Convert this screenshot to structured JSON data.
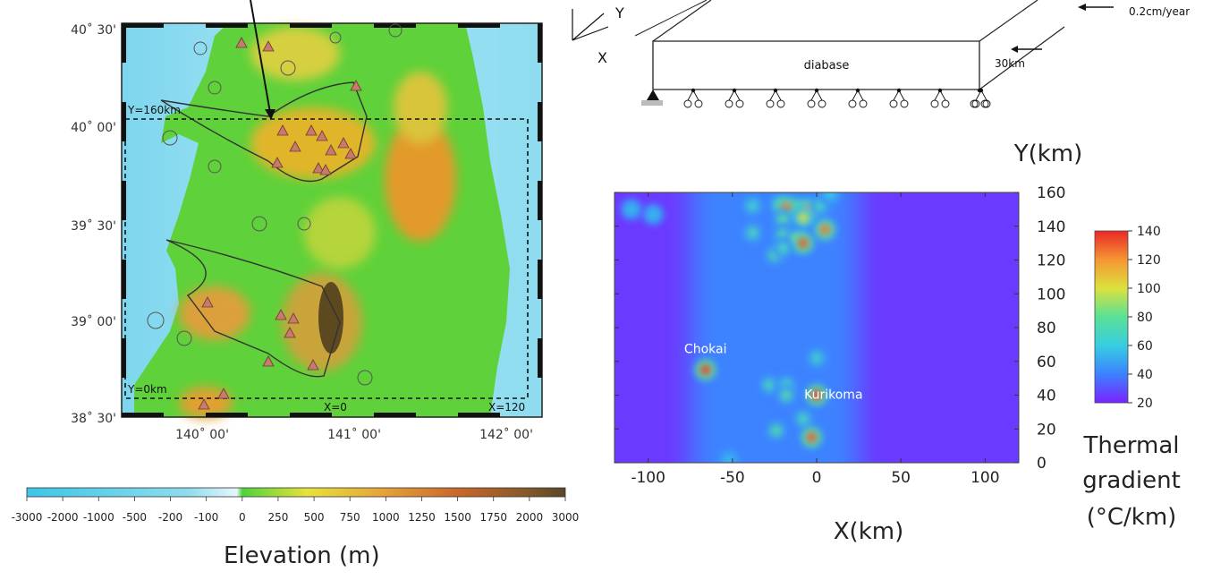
{
  "map": {
    "lat_labels": [
      "40˚ 30'",
      "40˚ 00'",
      "39˚ 30'",
      "39˚ 00'",
      "38˚ 30'"
    ],
    "lon_labels": [
      "140˚ 00'",
      "141˚ 00'",
      "142˚ 00'"
    ],
    "box_labels": {
      "ytop": "Y=160km",
      "ybottom": "Y=0km",
      "xleft": "X=0",
      "xright": "X=120"
    }
  },
  "elevation_scale": {
    "ticks": [
      "-3000",
      "-2000",
      "-1000",
      "-500",
      "-200",
      "-100",
      "0",
      "250",
      "500",
      "750",
      "1000",
      "1250",
      "1500",
      "1750",
      "2000",
      "3000"
    ],
    "title": "Elevation (m)"
  },
  "model": {
    "axis_y": "Y",
    "axis_x": "X",
    "velocity_label": "0.2cm/year",
    "material_label": "diabase",
    "thickness_label": "30km"
  },
  "chart_data": {
    "type": "heatmap",
    "title": "",
    "xlabel": "X(km)",
    "ylabel": "Y(km)",
    "xlim": [
      -120,
      120
    ],
    "ylim": [
      0,
      160
    ],
    "xticks": [
      -100,
      -50,
      0,
      50,
      100
    ],
    "yticks": [
      0,
      20,
      40,
      60,
      80,
      100,
      120,
      140,
      160
    ],
    "background_value": 25,
    "band": {
      "x_range": [
        -75,
        25
      ],
      "value": 40
    },
    "hotspots": [
      {
        "x": -110,
        "y": 150,
        "v": 55
      },
      {
        "x": -97,
        "y": 147,
        "v": 55
      },
      {
        "x": -38,
        "y": 152,
        "v": 65
      },
      {
        "x": -22,
        "y": 153,
        "v": 75
      },
      {
        "x": -12,
        "y": 152,
        "v": 75
      },
      {
        "x": -5,
        "y": 150,
        "v": 115
      },
      {
        "x": -18,
        "y": 151,
        "v": 125
      },
      {
        "x": 2,
        "y": 152,
        "v": 70
      },
      {
        "x": -20,
        "y": 144,
        "v": 80
      },
      {
        "x": -8,
        "y": 145,
        "v": 100
      },
      {
        "x": -38,
        "y": 136,
        "v": 70
      },
      {
        "x": -20,
        "y": 135,
        "v": 75
      },
      {
        "x": -12,
        "y": 132,
        "v": 90
      },
      {
        "x": 5,
        "y": 138,
        "v": 125
      },
      {
        "x": -8,
        "y": 130,
        "v": 130
      },
      {
        "x": -25,
        "y": 123,
        "v": 75
      },
      {
        "x": -20,
        "y": 127,
        "v": 70
      },
      {
        "x": 8,
        "y": 159,
        "v": 60
      },
      {
        "x": -66,
        "y": 55,
        "v": 135
      },
      {
        "x": -28,
        "y": 46,
        "v": 70
      },
      {
        "x": -18,
        "y": 46,
        "v": 70
      },
      {
        "x": -18,
        "y": 40,
        "v": 75
      },
      {
        "x": 0,
        "y": 62,
        "v": 65
      },
      {
        "x": 0,
        "y": 40,
        "v": 135
      },
      {
        "x": -8,
        "y": 26,
        "v": 70
      },
      {
        "x": -24,
        "y": 19,
        "v": 75
      },
      {
        "x": -3,
        "y": 15,
        "v": 130
      },
      {
        "x": -52,
        "y": 2,
        "v": 55
      }
    ],
    "annotations": [
      {
        "text": "Chokai",
        "x": -66,
        "y": 65
      },
      {
        "text": "Kurikoma",
        "x": 10,
        "y": 38
      }
    ],
    "colorbar": {
      "ticks": [
        20,
        40,
        60,
        80,
        100,
        120,
        140
      ],
      "title_lines": [
        "Thermal",
        "gradient",
        "(°C/km)"
      ]
    }
  }
}
